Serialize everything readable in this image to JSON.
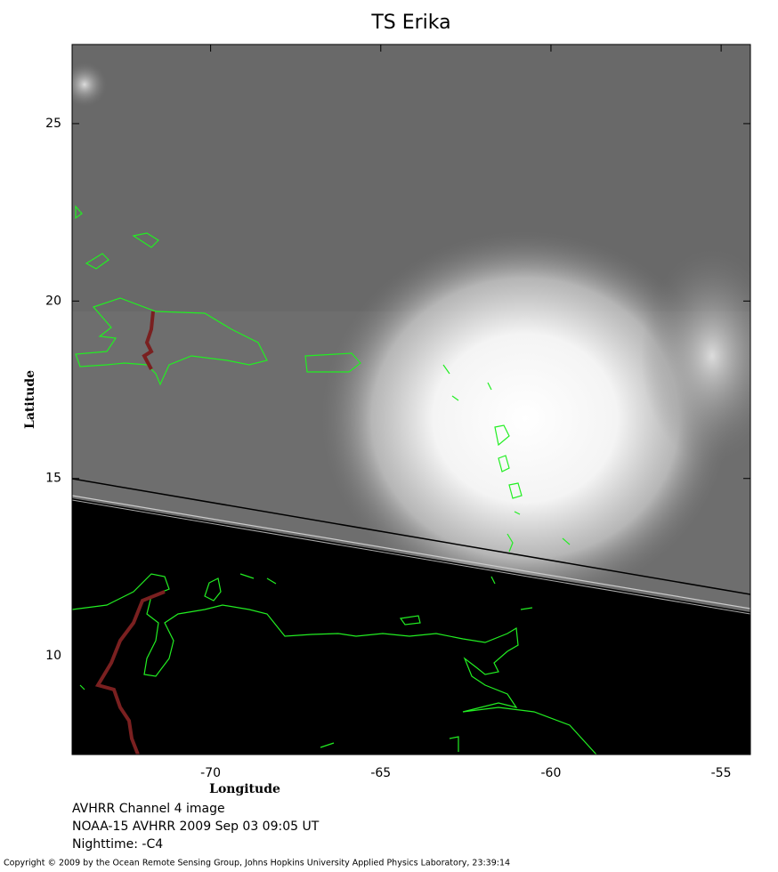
{
  "chart_data": {
    "type": "map",
    "title": "TS Erika",
    "xlabel": "Longitude",
    "ylabel": "Latitude",
    "xlim": [
      -74.07,
      -54.14
    ],
    "ylim": [
      7.22,
      27.23
    ],
    "xticks": [
      -70,
      -65,
      -60,
      -55
    ],
    "yticks": [
      10,
      15,
      20,
      25
    ],
    "notes": [
      "AVHRR Channel 4 image",
      "NOAA-15 AVHRR 2009 Sep 03 09:05 UT",
      "Nighttime: -C4"
    ],
    "copyright": "Copyright © 2009 by the Ocean Remote Sensing Group, Johns Hopkins University Applied Physics Laboratory, 23:39:14"
  }
}
